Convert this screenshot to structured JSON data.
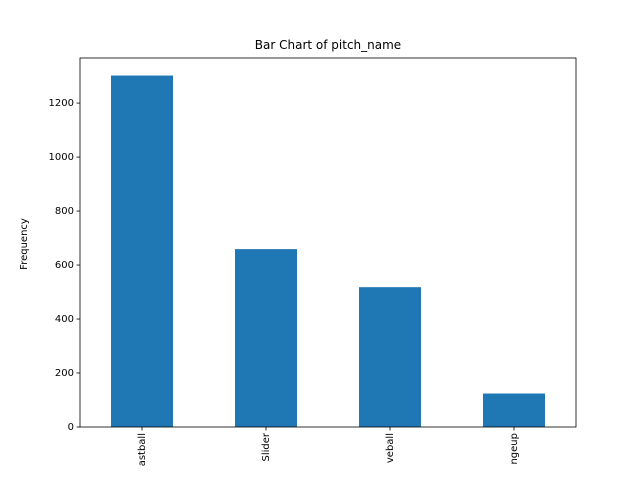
{
  "chart_data": {
    "type": "bar",
    "title": "Bar Chart of pitch_name",
    "xlabel": "",
    "ylabel": "Frequency",
    "categories": [
      "astball",
      "Slider",
      "veball",
      "ngeup"
    ],
    "values": [
      1302,
      659,
      518,
      124
    ],
    "ylim": [
      0,
      1367
    ],
    "yticks": [
      0,
      200,
      400,
      600,
      800,
      1000,
      1200
    ],
    "grid": false,
    "legend": "none",
    "bar_color": "#1f77b4"
  }
}
